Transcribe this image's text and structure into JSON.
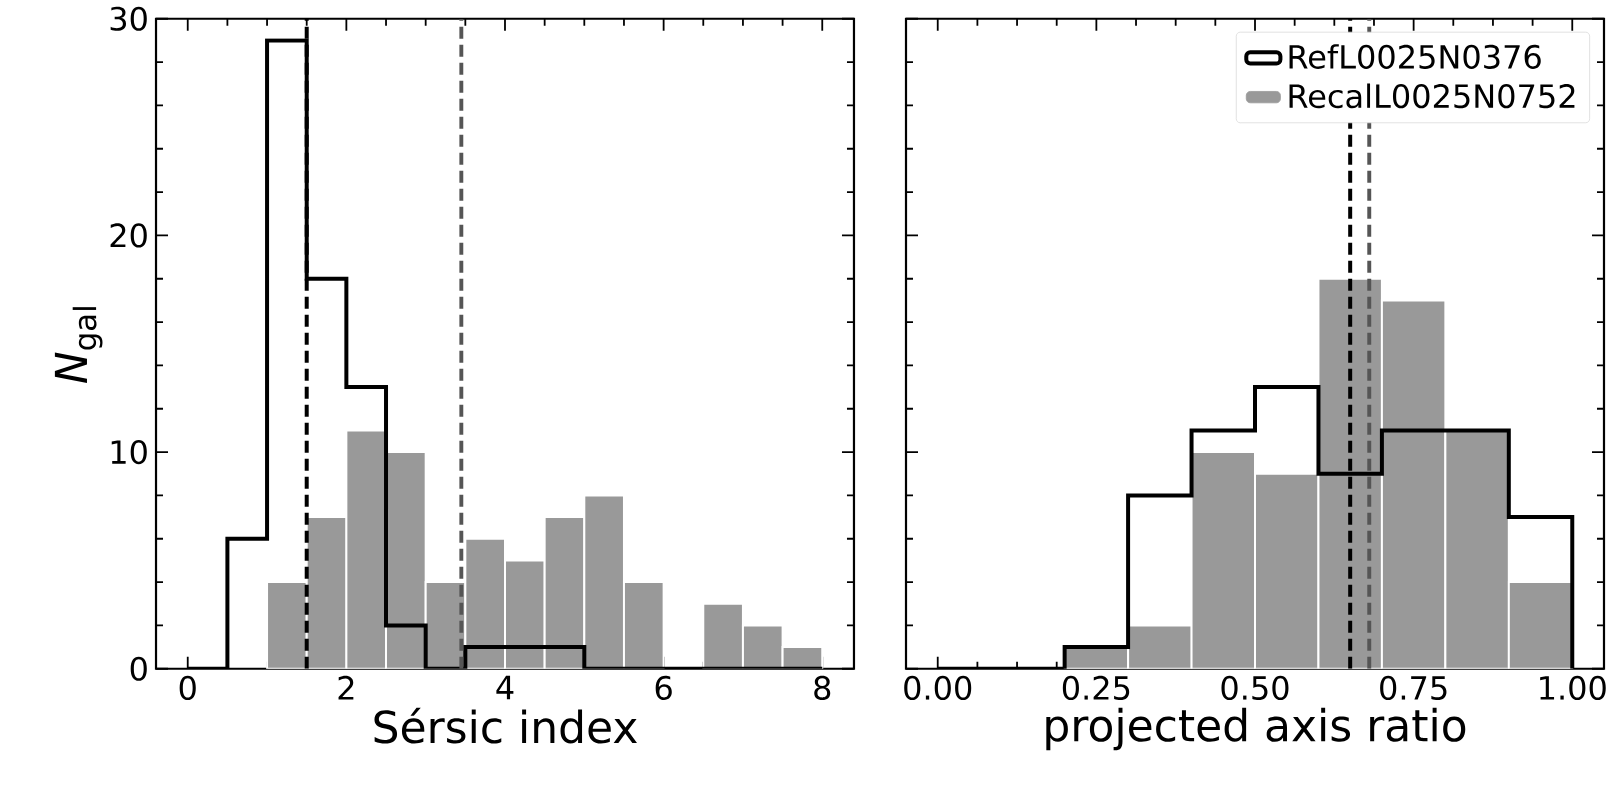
{
  "chart_data": [
    {
      "type": "histogram",
      "xlabel": "Sérsic index",
      "ylabel": "*N*$_{gal}$",
      "bins": [
        0,
        0.5,
        1,
        1.5,
        2,
        2.5,
        3,
        3.5,
        4,
        4.5,
        5,
        5.5,
        6,
        6.5,
        7,
        7.5,
        8
      ],
      "series": [
        {
          "type": "step",
          "color": "#000000",
          "x": [
            0,
            0.5,
            1,
            1.5,
            2,
            2.5,
            3,
            3.5,
            4,
            4.5,
            5,
            5.5,
            6,
            6.5,
            7,
            7.5,
            8
          ],
          "values": [
            0,
            6,
            29,
            18,
            13,
            2,
            0,
            1,
            1,
            1,
            0,
            0,
            0,
            0,
            0,
            0,
            0
          ]
        },
        {
          "color": "#999999",
          "values": [
            0,
            0,
            4,
            7,
            11,
            10,
            4,
            6,
            5,
            7,
            8,
            4,
            0,
            3,
            2,
            1
          ]
        }
      ],
      "xlim": [
        -0.4,
        8.4
      ],
      "ylim": [
        0,
        30
      ],
      "xticks": [
        0,
        2,
        4,
        6,
        8
      ],
      "yticks": [
        0,
        10,
        20,
        30
      ],
      "ref_lines": [
        {
          "axis": "x",
          "value": 1.5,
          "color": "#000000",
          "line_style": "dashed"
        },
        {
          "axis": "x",
          "value": 3.45,
          "color": "#555555",
          "line_style": "dashed"
        }
      ],
      "grid": false,
      "legend": false
    },
    {
      "type": "histogram",
      "xlabel": "projected axis ratio",
      "bins": [
        0,
        0.1,
        0.2,
        0.3,
        0.4,
        0.5,
        0.6,
        0.7,
        0.8,
        0.9,
        1.0
      ],
      "series": [
        {
          "type": "step",
          "name": "RefL0025N0376",
          "color": "#000000",
          "x": [
            0,
            0.1,
            0.2,
            0.3,
            0.4,
            0.5,
            0.6,
            0.7,
            0.8,
            0.9,
            1.0
          ],
          "values": [
            0,
            0,
            1,
            8,
            11,
            13,
            9,
            11,
            11,
            7,
            0
          ]
        },
        {
          "name": "RecalL0025N0752",
          "color": "#999999",
          "values": [
            0,
            0,
            1,
            2,
            10,
            9,
            18,
            17,
            11,
            4
          ]
        }
      ],
      "xlim": [
        -0.05,
        1.05
      ],
      "ylim": [
        0,
        30
      ],
      "xticks": [
        {
          "value": 0,
          "label": "0.00"
        },
        {
          "value": 0.25,
          "label": "0.25"
        },
        {
          "value": 0.5,
          "label": "0.50"
        },
        {
          "value": 0.75,
          "label": "0.75"
        },
        {
          "value": 1.0,
          "label": "1.00"
        }
      ],
      "yticks": [
        0,
        10,
        20,
        30
      ],
      "tick_labels": "x",
      "ref_lines": [
        {
          "axis": "x",
          "value": 0.65,
          "color": "#000000",
          "line_style": "dashed"
        },
        {
          "axis": "x",
          "value": 0.68,
          "color": "#555555",
          "line_style": "dashed"
        }
      ],
      "grid": false,
      "legend": "top right"
    }
  ]
}
